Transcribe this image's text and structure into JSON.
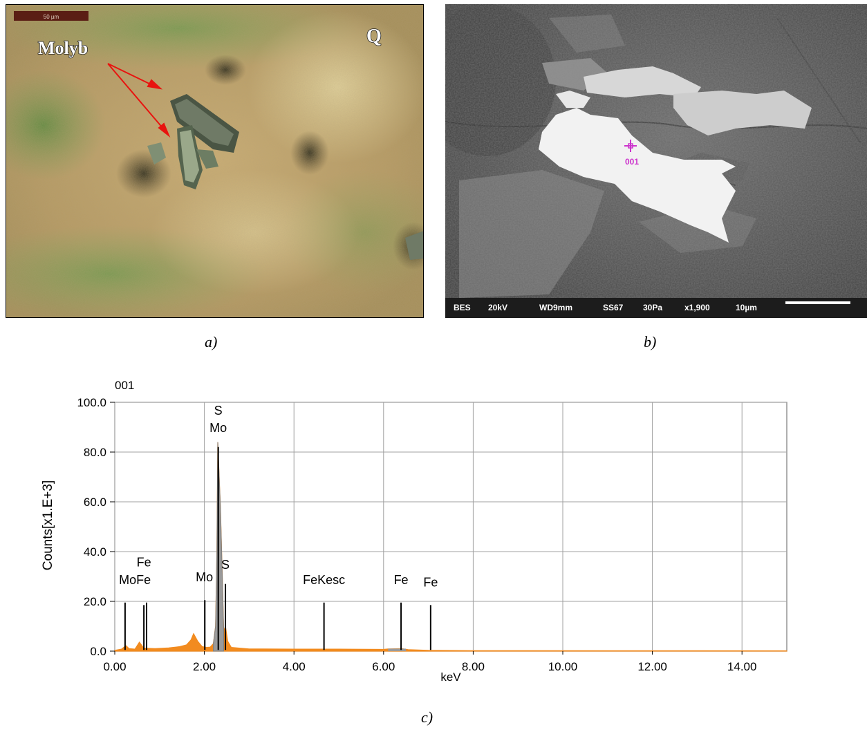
{
  "panel_a": {
    "caption": "a)",
    "scale_bar": "50 µm",
    "label_mineral": "Molyb",
    "label_q": "Q",
    "colors": {
      "arrow": "#e8130f",
      "matrix": "#b8a06a"
    }
  },
  "panel_b": {
    "caption": "b)",
    "point_label": "001",
    "info_bar": [
      "BES",
      "20kV",
      "WD9mm",
      "SS67",
      "30Pa",
      "x1,900",
      "10µm"
    ],
    "colors": {
      "marker": "#cc33cc",
      "background": "#6b6b6b"
    }
  },
  "panel_c": {
    "caption": "c)",
    "chart_data": {
      "type": "area",
      "title": "001",
      "xlabel": "keV",
      "ylabel": "Counts[x1.E+3]",
      "xlim": [
        0,
        15
      ],
      "ylim": [
        0,
        100
      ],
      "xticks": [
        "0.00",
        "2.00",
        "4.00",
        "6.00",
        "8.00",
        "10.00",
        "12.00",
        "14.00"
      ],
      "yticks": [
        "0.0",
        "20.0",
        "40.0",
        "60.0",
        "80.0",
        "100.0"
      ],
      "grid": true,
      "spectrum": [
        [
          0.0,
          0.3
        ],
        [
          0.15,
          0.8
        ],
        [
          0.25,
          2.2
        ],
        [
          0.32,
          1.0
        ],
        [
          0.45,
          0.8
        ],
        [
          0.55,
          3.6
        ],
        [
          0.65,
          1.2
        ],
        [
          0.9,
          1.0
        ],
        [
          1.2,
          1.3
        ],
        [
          1.45,
          1.8
        ],
        [
          1.6,
          2.5
        ],
        [
          1.7,
          4.5
        ],
        [
          1.76,
          7.0
        ],
        [
          1.85,
          4.0
        ],
        [
          1.95,
          1.8
        ],
        [
          2.05,
          1.5
        ],
        [
          2.13,
          1.6
        ],
        [
          2.2,
          3.0
        ],
        [
          2.25,
          10.0
        ],
        [
          2.28,
          40.0
        ],
        [
          2.3,
          84.0
        ],
        [
          2.33,
          70.0
        ],
        [
          2.36,
          57.0
        ],
        [
          2.4,
          30.0
        ],
        [
          2.43,
          8.0
        ],
        [
          2.47,
          10.0
        ],
        [
          2.52,
          4.0
        ],
        [
          2.6,
          1.5
        ],
        [
          3.0,
          0.9
        ],
        [
          4.0,
          0.8
        ],
        [
          5.0,
          0.8
        ],
        [
          6.0,
          0.7
        ],
        [
          6.1,
          0.9
        ],
        [
          6.4,
          1.0
        ],
        [
          6.55,
          0.6
        ],
        [
          7.0,
          0.3
        ],
        [
          8.0,
          0.2
        ],
        [
          15.0,
          0.1
        ]
      ],
      "peak_lines": [
        {
          "x": 0.23,
          "h": 19.5
        },
        {
          "x": 0.65,
          "h": 18.5
        },
        {
          "x": 0.71,
          "h": 19.5
        },
        {
          "x": 2.01,
          "h": 20.5
        },
        {
          "x": 2.31,
          "h": 82.0
        },
        {
          "x": 2.47,
          "h": 27.0
        },
        {
          "x": 4.67,
          "h": 19.5
        },
        {
          "x": 6.39,
          "h": 19.5
        },
        {
          "x": 7.05,
          "h": 18.5
        }
      ],
      "annotations": [
        {
          "text": "Fe",
          "x": 0.65,
          "y": 34
        },
        {
          "text": "MoFe",
          "x": 0.45,
          "y": 27
        },
        {
          "text": "Mo",
          "x": 2.0,
          "y": 28
        },
        {
          "text": "S",
          "x": 2.47,
          "y": 33
        },
        {
          "text": "S",
          "x": 2.31,
          "y": 95
        },
        {
          "text": "Mo",
          "x": 2.31,
          "y": 88
        },
        {
          "text": "FeKesc",
          "x": 4.67,
          "y": 27
        },
        {
          "text": "Fe",
          "x": 6.39,
          "y": 27
        },
        {
          "text": "Fe",
          "x": 7.05,
          "y": 26
        }
      ],
      "colors": {
        "spectrum": "#f28b1f",
        "peak_fill": "#9a9a9a",
        "line": "#000000",
        "grid": "#a0a0a0"
      }
    }
  }
}
